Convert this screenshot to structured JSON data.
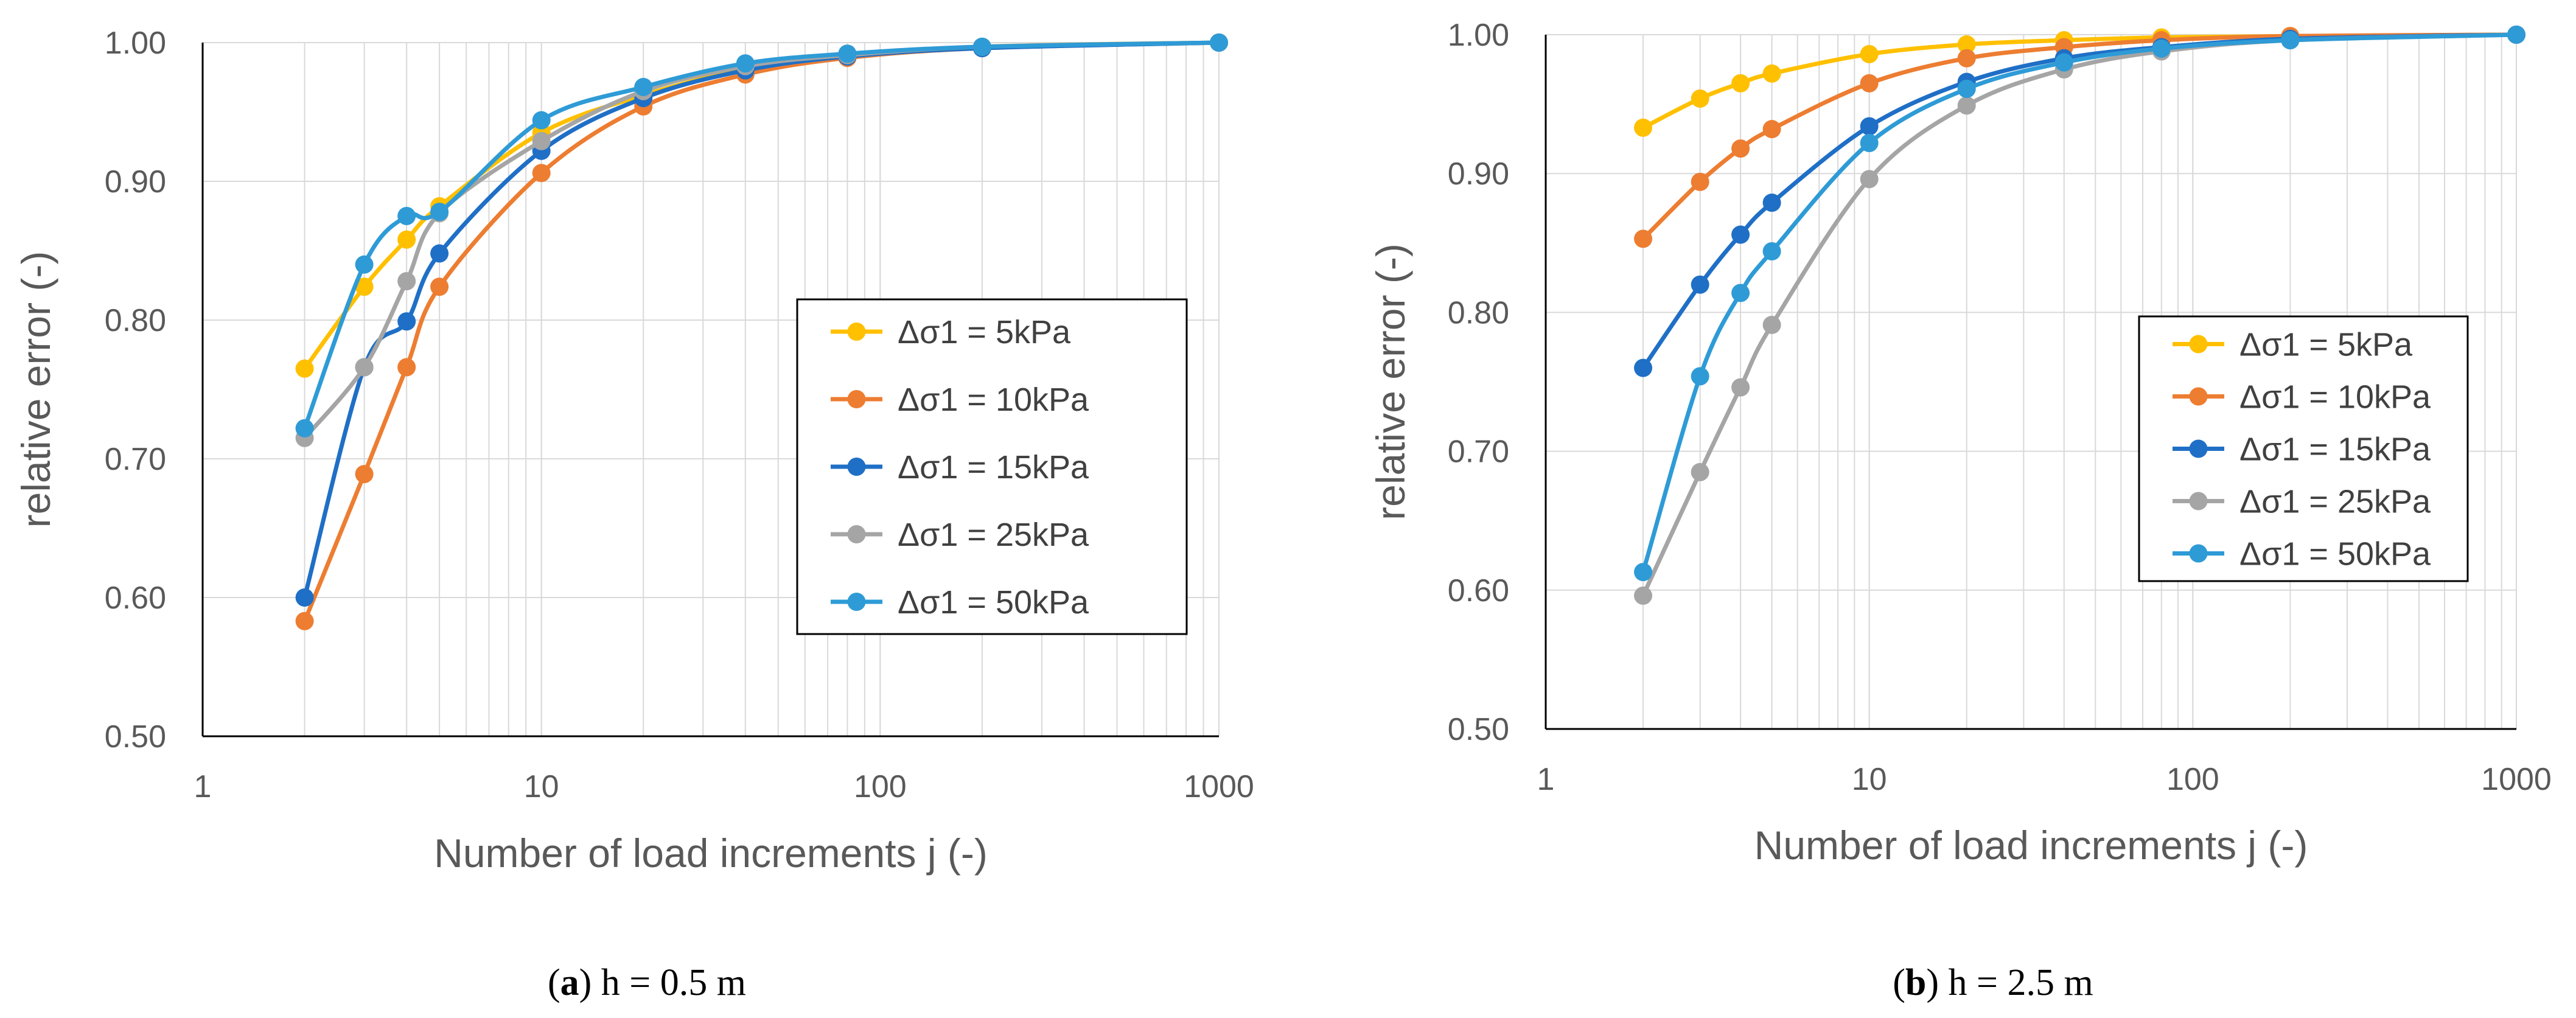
{
  "chart_data": [
    {
      "type": "line",
      "caption": {
        "letter": "a",
        "prefix": "(",
        "suffix": ") h = 0.5 m"
      },
      "xlabel": "Number of load increments j (-)",
      "ylabel": "relative error (-)",
      "x_scale": "log",
      "xlim": [
        1,
        1000
      ],
      "ylim": [
        0.5,
        1.0
      ],
      "x_ticks": [
        "1",
        "10",
        "100",
        "1000"
      ],
      "y_ticks": [
        "0.50",
        "0.60",
        "0.70",
        "0.80",
        "0.90",
        "1.00"
      ],
      "grid": true,
      "legend_position": "center-right",
      "x": [
        2,
        3,
        4,
        5,
        10,
        20,
        40,
        80,
        200,
        1000
      ],
      "series": [
        {
          "name": "Δσ1 = 5kPa",
          "color": "#FFC000",
          "values": [
            0.765,
            0.824,
            0.858,
            0.882,
            0.935,
            0.962,
            0.981,
            0.99,
            0.997,
            1.0
          ]
        },
        {
          "name": "Δσ1 = 10kPa",
          "color": "#ED7D31",
          "values": [
            0.583,
            0.689,
            0.766,
            0.824,
            0.906,
            0.954,
            0.977,
            0.989,
            0.996,
            1.0
          ]
        },
        {
          "name": "Δσ1 = 15kPa",
          "color": "#1F6FC6",
          "values": [
            0.6,
            0.766,
            0.799,
            0.848,
            0.922,
            0.96,
            0.98,
            0.99,
            0.996,
            1.0
          ]
        },
        {
          "name": "Δσ1 = 25kPa",
          "color": "#A5A5A5",
          "values": [
            0.715,
            0.766,
            0.828,
            0.877,
            0.929,
            0.965,
            0.983,
            0.991,
            0.997,
            1.0
          ]
        },
        {
          "name": "Δσ1 = 50kPa",
          "color": "#2E9BD6",
          "values": [
            0.722,
            0.84,
            0.875,
            0.878,
            0.944,
            0.968,
            0.985,
            0.992,
            0.997,
            1.0
          ]
        }
      ]
    },
    {
      "type": "line",
      "caption": {
        "letter": "b",
        "prefix": "(",
        "suffix": ") h = 2.5 m"
      },
      "xlabel": "Number of load increments j (-)",
      "ylabel": "relative error (-)",
      "x_scale": "log",
      "xlim": [
        1,
        1000
      ],
      "ylim": [
        0.5,
        1.0
      ],
      "x_ticks": [
        "1",
        "10",
        "100",
        "1000"
      ],
      "y_ticks": [
        "0.50",
        "0.60",
        "0.70",
        "0.80",
        "0.90",
        "1.00"
      ],
      "grid": true,
      "legend_position": "center-right",
      "x": [
        2,
        3,
        4,
        5,
        10,
        20,
        40,
        80,
        200,
        1000
      ],
      "series": [
        {
          "name": "Δσ1 = 5kPa",
          "color": "#FFC000",
          "values": [
            0.933,
            0.954,
            0.965,
            0.972,
            0.986,
            0.993,
            0.996,
            0.998,
            0.999,
            1.0
          ]
        },
        {
          "name": "Δσ1 = 10kPa",
          "color": "#ED7D31",
          "values": [
            0.853,
            0.894,
            0.918,
            0.932,
            0.965,
            0.983,
            0.991,
            0.996,
            0.999,
            1.0
          ]
        },
        {
          "name": "Δσ1 = 15kPa",
          "color": "#1F6FC6",
          "values": [
            0.76,
            0.82,
            0.856,
            0.879,
            0.934,
            0.966,
            0.983,
            0.991,
            0.997,
            1.0
          ]
        },
        {
          "name": "Δσ1 = 25kPa",
          "color": "#A5A5A5",
          "values": [
            0.596,
            0.685,
            0.746,
            0.791,
            0.896,
            0.949,
            0.975,
            0.988,
            0.996,
            1.0
          ]
        },
        {
          "name": "Δσ1 = 50kPa",
          "color": "#2E9BD6",
          "values": [
            0.613,
            0.754,
            0.814,
            0.844,
            0.922,
            0.961,
            0.98,
            0.99,
            0.996,
            1.0
          ]
        }
      ]
    }
  ]
}
